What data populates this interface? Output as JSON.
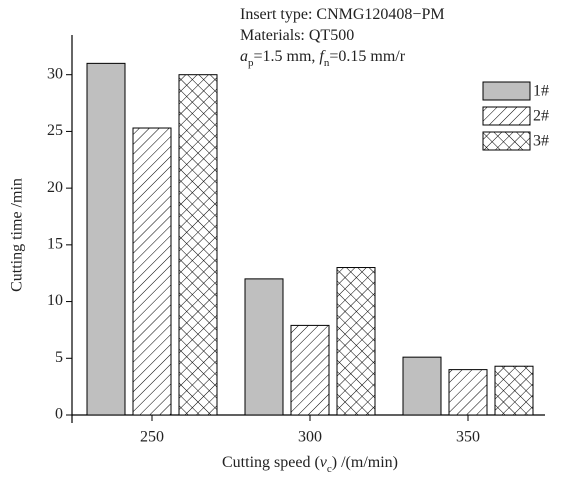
{
  "chart_data": {
    "type": "bar",
    "annotation": [
      [
        {
          "text": "Insert type: CNMG120408−PM"
        }
      ],
      [
        {
          "text": "Materials: QT500"
        }
      ],
      [
        {
          "text": "a",
          "italic": true
        },
        {
          "text": "p",
          "sub": true
        },
        {
          "text": "=1.5 mm, "
        },
        {
          "text": "f",
          "italic": true
        },
        {
          "text": "n",
          "sub": true
        },
        {
          "text": "=0.15 mm/r"
        }
      ]
    ],
    "x_label": [
      {
        "text": "Cutting speed ("
      },
      {
        "text": "v",
        "italic": true
      },
      {
        "text": "c",
        "sub": true
      },
      {
        "text": ") /(m/min)"
      }
    ],
    "y_label": "Cutting time /min",
    "categories": [
      "250",
      "300",
      "350"
    ],
    "series": [
      {
        "name": "1#",
        "color": "#bfbfbf",
        "pattern": "solid",
        "values": [
          31,
          12,
          5.1
        ]
      },
      {
        "name": "2#",
        "color": "#000000",
        "pattern": "hatch",
        "values": [
          25.3,
          7.9,
          4.0
        ]
      },
      {
        "name": "3#",
        "color": "#000000",
        "pattern": "crosshatch",
        "values": [
          30.0,
          13.0,
          4.3
        ]
      }
    ],
    "ylim": [
      0,
      33.5
    ],
    "yticks": [
      0,
      5,
      10,
      15,
      20,
      25,
      30
    ],
    "legend": "top-right"
  }
}
